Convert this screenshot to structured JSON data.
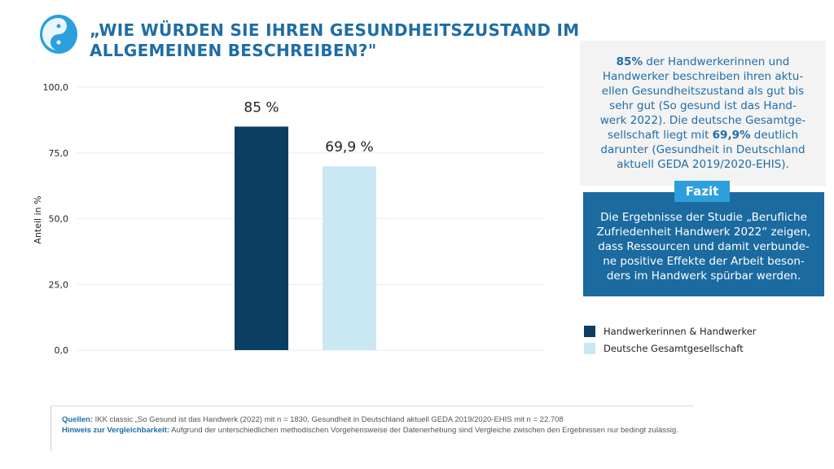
{
  "title": [
    "„WIE WÜRDEN SIE IHREN GESUNDHEITSZUSTAND IM",
    "ALLGEMEINEN BESCHREIBEN?\""
  ],
  "chart_data": {
    "type": "bar",
    "categories": [
      "Handwerkerinnen & Handwerker",
      "Deutsche Gesamtgesellschaft"
    ],
    "values": [
      85,
      69.9
    ],
    "data_labels": [
      "85 %",
      "69,9 %"
    ],
    "colors": [
      "#0b3e63",
      "#c9e8f3"
    ],
    "ylabel": "Anteil in %",
    "ylim": [
      0,
      100
    ],
    "yticks": [
      "0,0",
      "25,0",
      "50,0",
      "75,0",
      "100,0"
    ],
    "grid": true,
    "legend_position": "right"
  },
  "summary": {
    "lines": [
      [
        "85%",
        " der Handwerkerinnen und"
      ],
      [
        "",
        "Handwerker beschreiben ihren aktu-"
      ],
      [
        "",
        "ellen Gesundheitszustand als gut bis"
      ],
      [
        "",
        "sehr gut (So gesund ist das Hand-"
      ],
      [
        "",
        "werk 2022). Die deutsche Gesamtge-"
      ],
      [
        "",
        "sellschaft liegt mit ",
        "69,9%",
        " deutlich"
      ],
      [
        "",
        "darunter (Gesundheit in Deutschland"
      ],
      [
        "",
        "aktuell GEDA 2019/2020-EHIS)."
      ]
    ]
  },
  "fazit": {
    "badge": "Fazit",
    "lines": [
      "Die Ergebnisse der Studie „Berufliche",
      "Zufriedenheit Handwerk 2022“ zeigen,",
      "dass Ressourcen und damit verbunde-",
      "ne positive Effekte der Arbeit beson-",
      "ders im Handwerk spürbar werden."
    ]
  },
  "notes": {
    "sources_label": "Quellen:",
    "sources": " IKK classic „So Gesund ist das Handwerk (2022) mit n = 1830, Gesundheit in Deutschland aktuell GEDA 2019/2020-EHIS mit n = 22.708",
    "hint_label": "Hinweis zur Vergleichbarkeit:",
    "hint": " Aufgrund der unterschiedlichen methodischen Vorgehensweise der Datenerhebung sind Vergleiche zwischen den Ergebnissen nur bedingt zulässig."
  }
}
